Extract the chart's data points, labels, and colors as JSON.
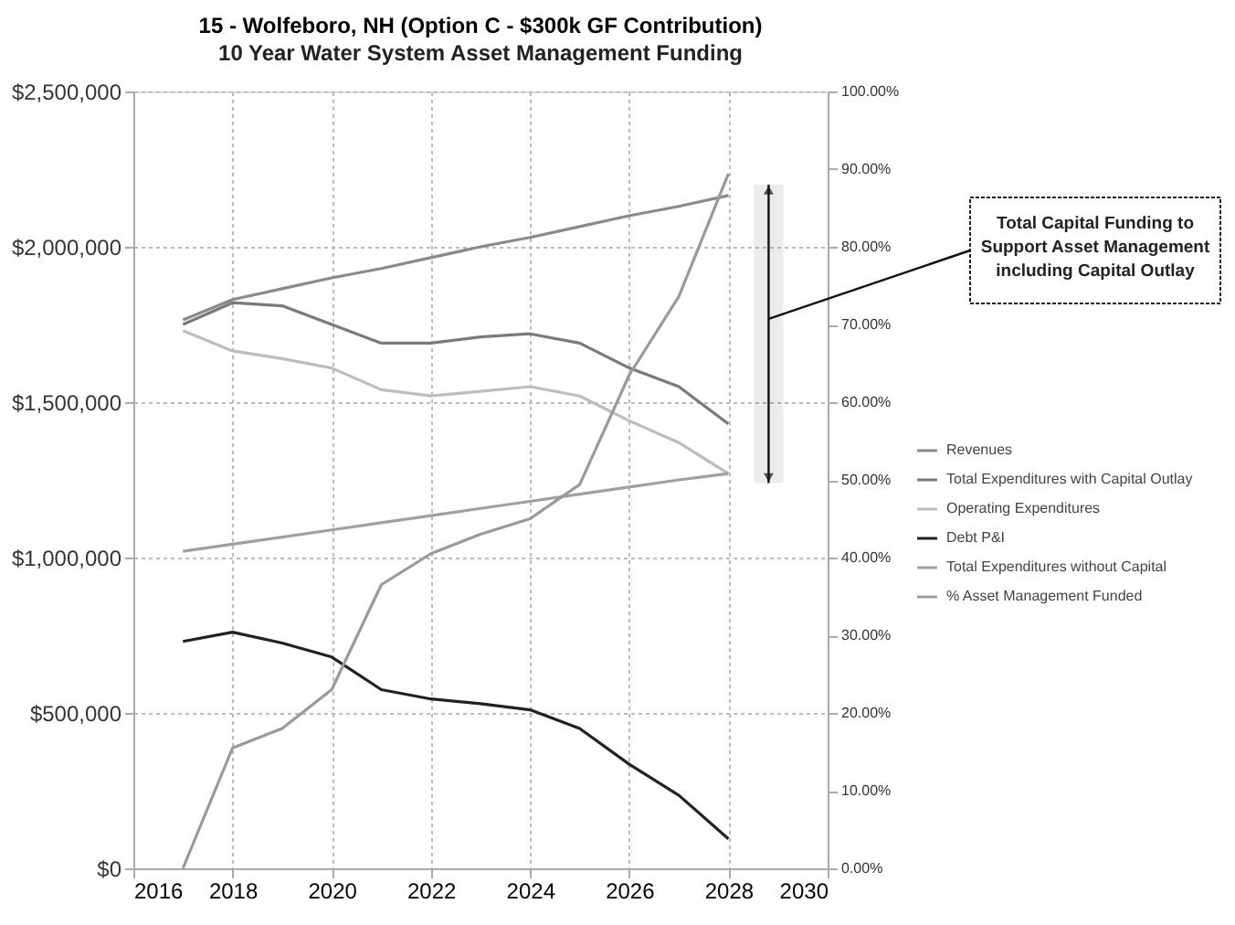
{
  "chart_data": {
    "type": "line",
    "title": "15 - Wolfeboro, NH (Option C - $300k GF Contribution)",
    "subtitle": "10 Year Water System Asset Management Funding",
    "x": [
      2017,
      2018,
      2019,
      2020,
      2021,
      2022,
      2023,
      2024,
      2025,
      2026,
      2027,
      2028
    ],
    "series": [
      {
        "name": "Revenues",
        "color": "#8a8a8a",
        "values": [
          1765000,
          1830000,
          1865000,
          1900000,
          1930000,
          1965000,
          2000000,
          2030000,
          2065000,
          2100000,
          2130000,
          2165000
        ]
      },
      {
        "name": "Total Expenditures with Capital Outlay",
        "color": "#7a7a7a",
        "values": [
          1750000,
          1820000,
          1810000,
          1750000,
          1690000,
          1690000,
          1710000,
          1720000,
          1690000,
          1610000,
          1550000,
          1430000
        ]
      },
      {
        "name": "Operating Expenditures",
        "color": "#bdbdbd",
        "values": [
          1730000,
          1665000,
          1640000,
          1610000,
          1540000,
          1520000,
          1535000,
          1550000,
          1520000,
          1440000,
          1370000,
          1270000
        ]
      },
      {
        "name": "Debt P&I",
        "color": "#222222",
        "values": [
          730000,
          760000,
          725000,
          680000,
          575000,
          545000,
          530000,
          510000,
          450000,
          335000,
          235000,
          95000
        ]
      },
      {
        "name": "Total Expenditures without Capital",
        "color": "#a0a0a0",
        "values": [
          1020000,
          1043000,
          1066000,
          1089000,
          1112000,
          1135000,
          1158000,
          1181000,
          1204000,
          1227000,
          1250000,
          1270000
        ]
      },
      {
        "name": "% Asset Management Funded",
        "color": "#9a9a9a",
        "axis": "y2",
        "values": [
          0,
          15.5,
          18,
          23,
          36.5,
          40.5,
          43,
          45,
          49.4,
          63.5,
          73.6,
          89.4
        ]
      }
    ],
    "xlim": [
      2016,
      2030
    ],
    "xticks": [
      2016,
      2018,
      2020,
      2022,
      2024,
      2026,
      2028,
      2030
    ],
    "ylim": [
      0,
      2500000
    ],
    "yticks": [
      {
        "value": 0,
        "label": "$0"
      },
      {
        "value": 500000,
        "label": "$500,000"
      },
      {
        "value": 1000000,
        "label": "$1,000,000"
      },
      {
        "value": 1500000,
        "label": "$1,500,000"
      },
      {
        "value": 2000000,
        "label": "$2,000,000"
      },
      {
        "value": 2500000,
        "label": "$2,500,000"
      }
    ],
    "y2lim": [
      0,
      100
    ],
    "y2ticks": [
      {
        "value": 0,
        "label": "0.00%"
      },
      {
        "value": 10,
        "label": "10.00%"
      },
      {
        "value": 20,
        "label": "20.00%"
      },
      {
        "value": 30,
        "label": "30.00%"
      },
      {
        "value": 40,
        "label": "40.00%"
      },
      {
        "value": 50,
        "label": "50.00%"
      },
      {
        "value": 60,
        "label": "60.00%"
      },
      {
        "value": 70,
        "label": "70.00%"
      },
      {
        "value": 80,
        "label": "80.00%"
      },
      {
        "value": 90,
        "label": "90.00%"
      },
      {
        "value": 100,
        "label": "100.00%"
      }
    ],
    "bands": [
      {
        "axis": "y",
        "from": 1240000,
        "to": 2200000,
        "label": "Total Capital Funding to Support Asset Management including Capital Outlay",
        "color": "#111111"
      }
    ],
    "grid": true,
    "legend": "right",
    "marker": "none",
    "line_style": "solid"
  }
}
